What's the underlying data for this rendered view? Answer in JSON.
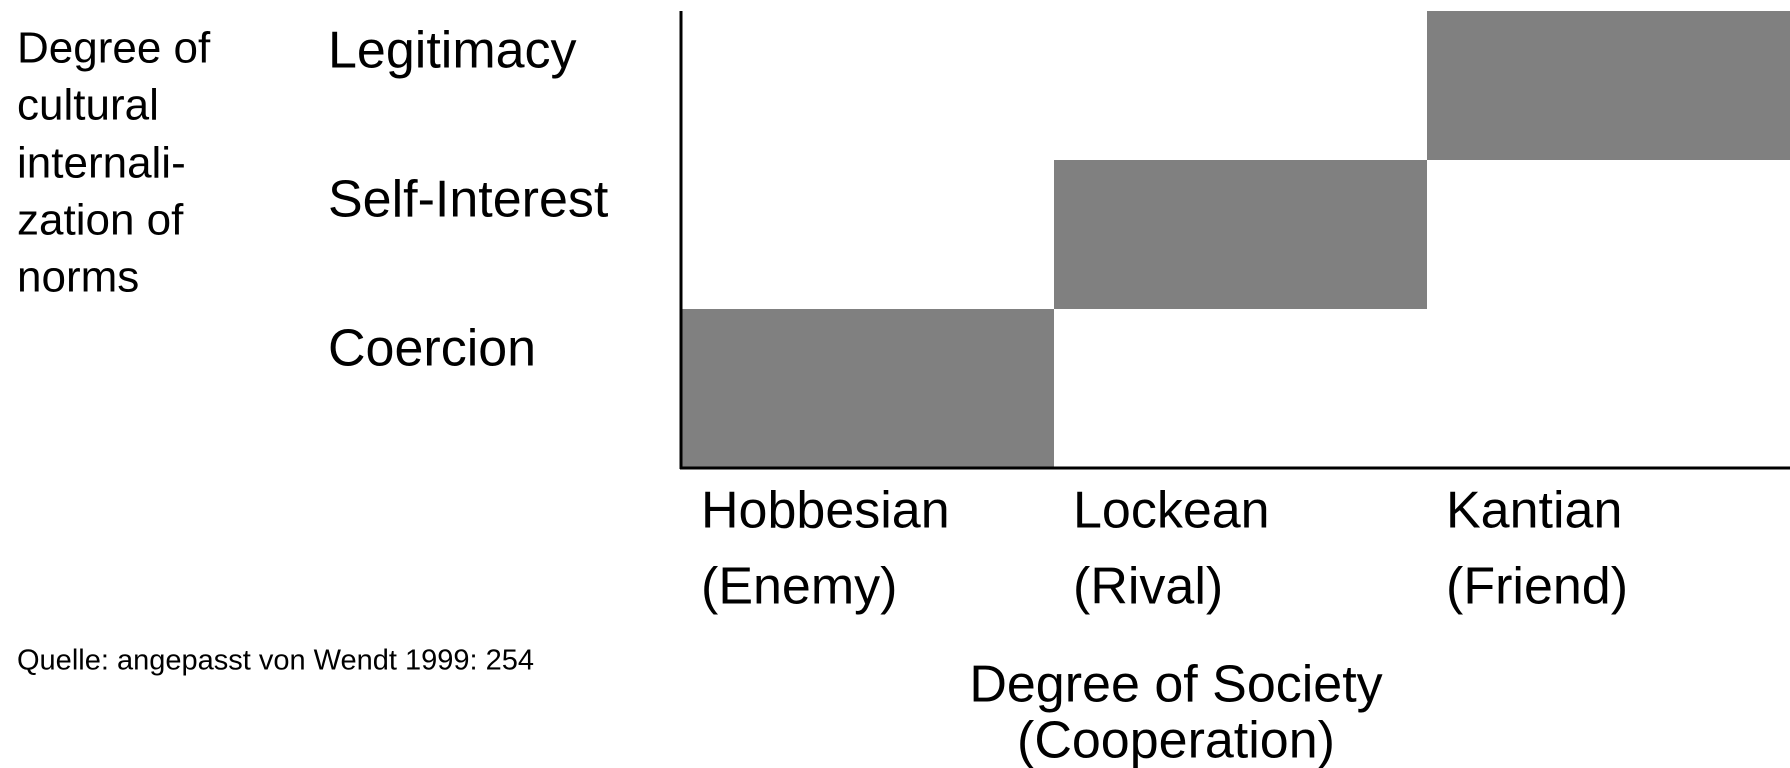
{
  "y_axis_label": [
    "Degree of",
    "cultural",
    "internali-",
    "zation of",
    "norms"
  ],
  "rows": [
    "Legitimacy",
    "Self-Interest",
    "Coercion"
  ],
  "columns": [
    {
      "name": "Hobbesian",
      "role": "(Enemy)"
    },
    {
      "name": "Lockean",
      "role": "(Rival)"
    },
    {
      "name": "Kantian",
      "role": "(Friend)"
    }
  ],
  "x_axis_label": [
    "Degree of Society",
    "(Cooperation)"
  ],
  "source": "Quelle: angepasst von Wendt 1999: 254"
}
